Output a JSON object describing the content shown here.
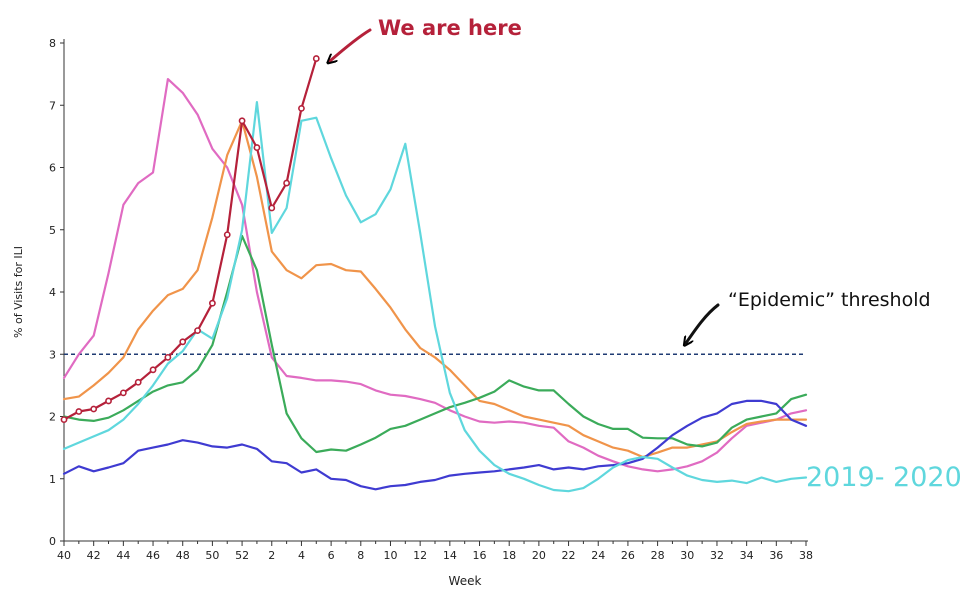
{
  "chart_data": {
    "type": "line",
    "xlabel": "Week",
    "ylabel": "% of Visits for ILI",
    "ylim": [
      0,
      8
    ],
    "yticks": [
      "0",
      "1",
      "2",
      "3",
      "4",
      "5",
      "6",
      "7",
      "8"
    ],
    "xticks": [
      "40",
      "42",
      "44",
      "46",
      "48",
      "50",
      "52",
      "2",
      "4",
      "6",
      "8",
      "10",
      "12",
      "14",
      "16",
      "18",
      "20",
      "22",
      "24",
      "26",
      "28",
      "30",
      "32",
      "34",
      "36",
      "38"
    ],
    "threshold": {
      "value": 3,
      "label": "“Epidemic” threshold",
      "color": "#1f3b73"
    },
    "callout": "We are here",
    "series_label": "2019- 2020",
    "series": [
      {
        "color": "#e06bc2",
        "values": [
          2.62,
          3.0,
          3.3,
          4.3,
          5.4,
          5.75,
          5.92,
          7.42,
          7.2,
          6.85,
          6.3,
          6.0,
          5.4,
          4.0,
          2.95,
          2.65,
          2.62,
          2.58,
          2.58,
          2.56,
          2.52,
          2.42,
          2.35,
          2.33,
          2.28,
          2.22,
          2.1,
          2.0,
          1.92,
          1.9,
          1.92,
          1.9,
          1.85,
          1.82,
          1.6,
          1.5,
          1.37,
          1.28,
          1.2,
          1.15,
          1.12,
          1.15,
          1.2,
          1.28,
          1.42,
          1.65,
          1.85,
          1.9,
          1.95,
          2.05,
          2.1
        ]
      },
      {
        "color": "#f0944a",
        "values": [
          2.28,
          2.32,
          2.5,
          2.7,
          2.95,
          3.4,
          3.7,
          3.95,
          4.05,
          4.35,
          5.2,
          6.2,
          6.75,
          5.85,
          4.65,
          4.35,
          4.22,
          4.43,
          4.45,
          4.35,
          4.33,
          4.05,
          3.75,
          3.4,
          3.1,
          2.95,
          2.75,
          2.5,
          2.25,
          2.2,
          2.1,
          2.0,
          1.95,
          1.9,
          1.85,
          1.7,
          1.6,
          1.5,
          1.45,
          1.35,
          1.42,
          1.5,
          1.5,
          1.55,
          1.6,
          1.75,
          1.88,
          1.92,
          1.95,
          1.95,
          1.95
        ]
      },
      {
        "color": "#3bab5a",
        "values": [
          2.0,
          1.95,
          1.93,
          1.98,
          2.1,
          2.25,
          2.4,
          2.5,
          2.55,
          2.75,
          3.15,
          4.0,
          4.9,
          4.35,
          3.15,
          2.05,
          1.65,
          1.43,
          1.47,
          1.45,
          1.55,
          1.66,
          1.8,
          1.85,
          1.95,
          2.05,
          2.15,
          2.22,
          2.3,
          2.4,
          2.58,
          2.48,
          2.42,
          2.42,
          2.2,
          2.0,
          1.88,
          1.8,
          1.8,
          1.66,
          1.65,
          1.65,
          1.55,
          1.52,
          1.58,
          1.82,
          1.95,
          2.0,
          2.05,
          2.28,
          2.35
        ]
      },
      {
        "color": "#3f3bd1",
        "values": [
          1.08,
          1.2,
          1.12,
          1.18,
          1.25,
          1.45,
          1.5,
          1.55,
          1.62,
          1.58,
          1.52,
          1.5,
          1.55,
          1.48,
          1.28,
          1.25,
          1.1,
          1.15,
          1.0,
          0.98,
          0.88,
          0.83,
          0.88,
          0.9,
          0.95,
          0.98,
          1.05,
          1.08,
          1.1,
          1.12,
          1.15,
          1.18,
          1.22,
          1.15,
          1.18,
          1.15,
          1.2,
          1.22,
          1.25,
          1.32,
          1.5,
          1.7,
          1.85,
          1.98,
          2.05,
          2.2,
          2.25,
          2.25,
          2.2,
          1.95,
          1.85
        ]
      },
      {
        "color": "#5fd7dd",
        "values": [
          1.48,
          1.58,
          1.68,
          1.78,
          1.95,
          2.2,
          2.5,
          2.85,
          3.05,
          3.4,
          3.25,
          3.9,
          5.0,
          7.05,
          4.95,
          5.35,
          6.75,
          6.8,
          6.15,
          5.55,
          5.12,
          5.25,
          5.65,
          6.38,
          4.95,
          3.45,
          2.38,
          1.78,
          1.45,
          1.22,
          1.08,
          1.0,
          0.9,
          0.82,
          0.8,
          0.85,
          1.0,
          1.18,
          1.3,
          1.35,
          1.32,
          1.18,
          1.05,
          0.98,
          0.95,
          0.97,
          0.93,
          1.02,
          0.95,
          1.0,
          1.02
        ]
      },
      {
        "color": "#b5213a",
        "markers": true,
        "values": [
          1.95,
          2.08,
          2.12,
          2.25,
          2.38,
          2.55,
          2.75,
          2.95,
          3.2,
          3.38,
          3.82,
          4.92,
          6.75,
          6.32,
          5.35,
          5.75,
          6.95,
          7.75
        ]
      }
    ]
  }
}
